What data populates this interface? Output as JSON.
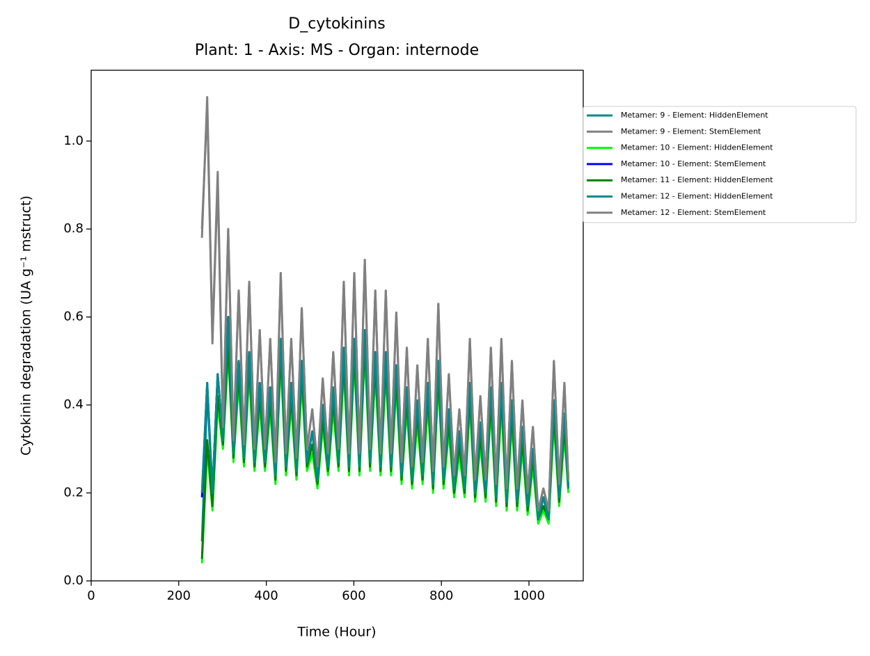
{
  "chart_data": {
    "type": "line",
    "title": "D_cytokinins",
    "subtitle": "Plant: 1 - Axis: MS - Organ: internode",
    "x_label": "Time (Hour)",
    "y_label": "Cytokinin degradation (UA g⁻¹ mstruct)",
    "xlim": [
      0,
      1124
    ],
    "ylim": [
      0,
      1.161
    ],
    "xticks": [
      0,
      200,
      400,
      600,
      800,
      1000
    ],
    "yticks": [
      {
        "value": 0,
        "label": "0.0"
      },
      {
        "value": 0.2,
        "label": "0.2"
      },
      {
        "value": 0.4,
        "label": "0.4"
      },
      {
        "value": 0.6,
        "label": "0.6"
      },
      {
        "value": 0.8,
        "label": "0.8"
      },
      {
        "value": 1.0,
        "label": "1.0"
      }
    ],
    "grid": false,
    "legend": "outside right",
    "x": [
      253,
      265,
      277,
      289,
      301,
      313,
      325,
      337,
      349,
      361,
      373,
      385,
      397,
      409,
      421,
      433,
      445,
      457,
      469,
      481,
      493,
      505,
      517,
      529,
      541,
      553,
      565,
      577,
      589,
      601,
      613,
      625,
      637,
      649,
      661,
      673,
      685,
      697,
      709,
      721,
      733,
      745,
      757,
      769,
      781,
      793,
      805,
      817,
      829,
      841,
      853,
      865,
      877,
      889,
      901,
      913,
      925,
      937,
      949,
      961,
      973,
      985,
      997,
      1009,
      1021,
      1033,
      1045,
      1057,
      1069,
      1081,
      1090
    ],
    "series": [
      {
        "name": "Metamer: 9 - Element: HiddenElement",
        "color": "#008b8b",
        "values": [
          0.09,
          0.43,
          0.2,
          0.47,
          0.32,
          0.6,
          0.29,
          0.5,
          0.28,
          0.52,
          0.27,
          0.45,
          0.27,
          0.44,
          0.24,
          0.55,
          0.26,
          0.45,
          0.25,
          0.5,
          0.27,
          0.34,
          0.23,
          0.4,
          0.26,
          0.44,
          0.27,
          0.53,
          0.26,
          0.55,
          0.26,
          0.57,
          0.27,
          0.52,
          0.26,
          0.52,
          0.26,
          0.49,
          0.24,
          0.44,
          0.23,
          0.41,
          0.24,
          0.45,
          0.22,
          0.5,
          0.23,
          0.39,
          0.21,
          0.34,
          0.21,
          0.45,
          0.2,
          0.36,
          0.2,
          0.44,
          0.19,
          0.45,
          0.18,
          0.41,
          0.18,
          0.35,
          0.17,
          0.3,
          0.14,
          0.19,
          0.14,
          0.41,
          0.19,
          0.38,
          0.21
        ]
      },
      {
        "name": "Metamer: 9 - Element: StemElement",
        "color": "#808080",
        "values": [
          0.8,
          1.08,
          0.54,
          0.91,
          0.34,
          0.8,
          0.32,
          0.66,
          0.31,
          0.68,
          0.3,
          0.57,
          0.3,
          0.55,
          0.27,
          0.7,
          0.29,
          0.55,
          0.28,
          0.62,
          0.3,
          0.39,
          0.26,
          0.46,
          0.29,
          0.52,
          0.3,
          0.68,
          0.29,
          0.7,
          0.29,
          0.73,
          0.3,
          0.66,
          0.29,
          0.66,
          0.29,
          0.61,
          0.27,
          0.53,
          0.26,
          0.49,
          0.27,
          0.55,
          0.25,
          0.63,
          0.26,
          0.47,
          0.24,
          0.39,
          0.24,
          0.55,
          0.23,
          0.42,
          0.23,
          0.53,
          0.22,
          0.55,
          0.21,
          0.5,
          0.21,
          0.41,
          0.2,
          0.35,
          0.16,
          0.21,
          0.16,
          0.5,
          0.22,
          0.45,
          0.23
        ]
      },
      {
        "name": "Metamer: 10 - Element: HiddenElement",
        "color": "#00ff00",
        "values": [
          0.04,
          0.3,
          0.16,
          0.4,
          0.3,
          0.52,
          0.27,
          0.45,
          0.26,
          0.47,
          0.25,
          0.4,
          0.25,
          0.39,
          0.22,
          0.5,
          0.24,
          0.4,
          0.23,
          0.45,
          0.25,
          0.29,
          0.21,
          0.35,
          0.24,
          0.39,
          0.25,
          0.48,
          0.24,
          0.5,
          0.24,
          0.52,
          0.25,
          0.47,
          0.24,
          0.47,
          0.24,
          0.44,
          0.22,
          0.39,
          0.21,
          0.36,
          0.22,
          0.4,
          0.2,
          0.45,
          0.21,
          0.34,
          0.19,
          0.29,
          0.19,
          0.4,
          0.18,
          0.31,
          0.18,
          0.39,
          0.17,
          0.4,
          0.16,
          0.36,
          0.16,
          0.3,
          0.15,
          0.26,
          0.13,
          0.16,
          0.13,
          0.36,
          0.17,
          0.33,
          0.2
        ]
      },
      {
        "name": "Metamer: 10 - Element: StemElement",
        "color": "#0000ff",
        "values": [
          0.19,
          0.45,
          0.2,
          0.47,
          0.32,
          0.6,
          0.29,
          0.5,
          0.28,
          0.52,
          0.27,
          0.45,
          0.27,
          0.44,
          0.24,
          0.55,
          0.26,
          0.45,
          0.25,
          0.5,
          0.27,
          0.34,
          0.23,
          0.4,
          0.26,
          0.44,
          0.27,
          0.53,
          0.26,
          0.55,
          0.26,
          0.57,
          0.27,
          0.52,
          0.26,
          0.52,
          0.26,
          0.49,
          0.24,
          0.44,
          0.23,
          0.41,
          0.24,
          0.45,
          0.22,
          0.5,
          0.23,
          0.39,
          0.21,
          0.34,
          0.21,
          0.45,
          0.2,
          0.36,
          0.2,
          0.44,
          0.19,
          0.45,
          0.18,
          0.41,
          0.18,
          0.35,
          0.17,
          0.3,
          0.14,
          0.19,
          0.14,
          0.41,
          0.19,
          0.38,
          0.21
        ]
      },
      {
        "name": "Metamer: 11 - Element: HiddenElement",
        "color": "#008000",
        "values": [
          0.05,
          0.32,
          0.17,
          0.42,
          0.31,
          0.54,
          0.28,
          0.47,
          0.27,
          0.49,
          0.26,
          0.42,
          0.26,
          0.41,
          0.23,
          0.52,
          0.25,
          0.42,
          0.24,
          0.47,
          0.26,
          0.31,
          0.22,
          0.37,
          0.25,
          0.41,
          0.26,
          0.5,
          0.25,
          0.52,
          0.25,
          0.54,
          0.26,
          0.49,
          0.25,
          0.49,
          0.25,
          0.46,
          0.23,
          0.41,
          0.22,
          0.38,
          0.23,
          0.42,
          0.21,
          0.47,
          0.22,
          0.36,
          0.2,
          0.31,
          0.2,
          0.42,
          0.19,
          0.33,
          0.19,
          0.41,
          0.18,
          0.42,
          0.17,
          0.38,
          0.17,
          0.32,
          0.16,
          0.28,
          0.14,
          0.17,
          0.14,
          0.38,
          0.18,
          0.35,
          0.21
        ]
      },
      {
        "name": "Metamer: 12 - Element: HiddenElement",
        "color": "#008b8b",
        "values": [
          0.2,
          0.45,
          0.2,
          0.47,
          0.32,
          0.6,
          0.29,
          0.5,
          0.28,
          0.52,
          0.27,
          0.45,
          0.27,
          0.44,
          0.24,
          0.55,
          0.26,
          0.45,
          0.25,
          0.5,
          0.27,
          0.34,
          0.23,
          0.4,
          0.26,
          0.44,
          0.27,
          0.53,
          0.26,
          0.55,
          0.26,
          0.57,
          0.27,
          0.52,
          0.26,
          0.52,
          0.26,
          0.49,
          0.24,
          0.44,
          0.23,
          0.41,
          0.24,
          0.45,
          0.22,
          0.5,
          0.23,
          0.39,
          0.21,
          0.34,
          0.21,
          0.45,
          0.2,
          0.36,
          0.2,
          0.44,
          0.19,
          0.45,
          0.18,
          0.41,
          0.18,
          0.35,
          0.17,
          0.3,
          0.14,
          0.19,
          0.14,
          0.41,
          0.19,
          0.38,
          0.21
        ]
      },
      {
        "name": "Metamer: 12 - Element: StemElement",
        "color": "#808080",
        "values": [
          0.78,
          1.1,
          0.55,
          0.93,
          0.35,
          0.8,
          0.32,
          0.66,
          0.31,
          0.68,
          0.3,
          0.57,
          0.3,
          0.55,
          0.27,
          0.7,
          0.29,
          0.55,
          0.28,
          0.62,
          0.3,
          0.39,
          0.26,
          0.46,
          0.29,
          0.52,
          0.3,
          0.68,
          0.29,
          0.7,
          0.29,
          0.73,
          0.3,
          0.66,
          0.29,
          0.66,
          0.29,
          0.61,
          0.27,
          0.53,
          0.26,
          0.49,
          0.27,
          0.55,
          0.25,
          0.63,
          0.26,
          0.47,
          0.24,
          0.39,
          0.24,
          0.55,
          0.23,
          0.42,
          0.23,
          0.53,
          0.22,
          0.55,
          0.21,
          0.5,
          0.21,
          0.41,
          0.2,
          0.35,
          0.16,
          0.21,
          0.16,
          0.5,
          0.22,
          0.45,
          0.23
        ]
      }
    ]
  }
}
